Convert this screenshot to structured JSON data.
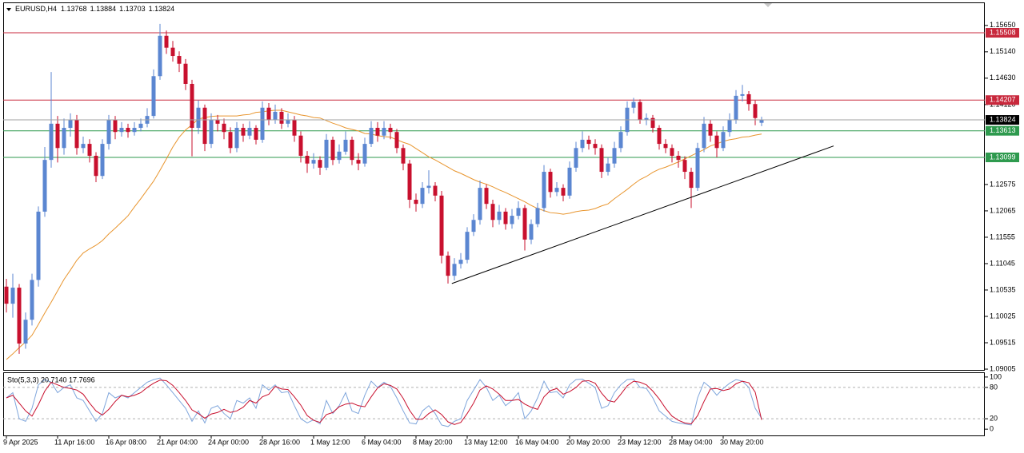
{
  "chart_data": {
    "type": "candlestick",
    "symbol": "EURUSD,H4",
    "categories": [
      "9 Apr 2025",
      null,
      null,
      null,
      null,
      null,
      null,
      null,
      "11 Apr 16:00",
      null,
      null,
      null,
      null,
      null,
      null,
      null,
      "16 Apr 08:00",
      null,
      null,
      null,
      null,
      null,
      null,
      null,
      "21 Apr 04:00",
      null,
      null,
      null,
      null,
      null,
      null,
      null,
      "24 Apr 00:00",
      null,
      null,
      null,
      null,
      null,
      null,
      null,
      "28 Apr 16:00",
      null,
      null,
      null,
      null,
      null,
      null,
      null,
      "1 May 12:00",
      null,
      null,
      null,
      null,
      null,
      null,
      null,
      "6 May 04:00",
      null,
      null,
      null,
      null,
      null,
      null,
      null,
      "8 May 20:00",
      null,
      null,
      null,
      null,
      null,
      null,
      null,
      "13 May 12:00",
      null,
      null,
      null,
      null,
      null,
      null,
      null,
      "16 May 04:00",
      null,
      null,
      null,
      null,
      null,
      null,
      null,
      "20 May 20:00",
      null,
      null,
      null,
      null,
      null,
      null,
      null,
      "23 May 12:00",
      null,
      null,
      null,
      null,
      null,
      null,
      null,
      "28 May 04:00",
      null,
      null,
      null,
      null,
      null,
      null,
      null,
      "30 May 20:00",
      null,
      null,
      null,
      null,
      null,
      null
    ],
    "open": [
      1.106,
      1.1027,
      1.1058,
      1.095,
      1.0996,
      1.1073,
      1.1205,
      1.1305,
      1.1375,
      1.1328,
      1.1367,
      1.1383,
      1.1328,
      1.1336,
      1.1313,
      1.1274,
      1.1336,
      1.1383,
      1.1359,
      1.1367,
      1.1359,
      1.1367,
      1.1375,
      1.139,
      1.1467,
      1.1545,
      1.1522,
      1.1506,
      1.1491,
      1.1452,
      1.1367,
      1.1406,
      1.1336,
      1.1383,
      1.1375,
      1.1359,
      1.1328,
      1.1367,
      1.1352,
      1.1367,
      1.1344,
      1.1406,
      1.1383,
      1.1398,
      1.1375,
      1.1383,
      1.1352,
      1.1313,
      1.1298,
      1.1305,
      1.129,
      1.1344,
      1.1305,
      1.1321,
      1.1344,
      1.1305,
      1.1298,
      1.1336,
      1.1367,
      1.1352,
      1.1367,
      1.1359,
      1.1328,
      1.1298,
      1.1228,
      1.122,
      1.1251,
      1.1255,
      1.1236,
      1.112,
      1.1081,
      1.1104,
      1.1112,
      1.1166,
      1.1189,
      1.1251,
      1.122,
      1.1189,
      1.1205,
      1.1181,
      1.1197,
      1.1212,
      1.1151,
      1.1181,
      1.1212,
      1.1282,
      1.1243,
      1.1251,
      1.1236,
      1.129,
      1.1328,
      1.1344,
      1.1336,
      1.1328,
      1.1282,
      1.1298,
      1.1328,
      1.1359,
      1.1406,
      1.1417,
      1.1383,
      1.1386,
      1.1367,
      1.1336,
      1.1328,
      1.1313,
      1.1305,
      1.1282,
      1.1251,
      1.1328,
      1.1375,
      1.1352,
      1.1328,
      1.1359,
      1.1383,
      1.1429,
      1.1432,
      1.1413,
      1.13768
    ],
    "high": [
      1.1075,
      1.1085,
      1.1065,
      1.101,
      1.1085,
      1.1215,
      1.133,
      1.1475,
      1.139,
      1.1385,
      1.1395,
      1.1392,
      1.135,
      1.1345,
      1.132,
      1.1345,
      1.1392,
      1.139,
      1.1378,
      1.1375,
      1.1378,
      1.1385,
      1.1405,
      1.148,
      1.1568,
      1.1555,
      1.1535,
      1.1515,
      1.15,
      1.146,
      1.142,
      1.1412,
      1.1395,
      1.1392,
      1.1385,
      1.1368,
      1.1378,
      1.1375,
      1.138,
      1.1372,
      1.1418,
      1.1415,
      1.1412,
      1.1405,
      1.1395,
      1.139,
      1.136,
      1.1322,
      1.1318,
      1.1312,
      1.1355,
      1.135,
      1.1335,
      1.136,
      1.135,
      1.1318,
      1.1348,
      1.138,
      1.1378,
      1.138,
      1.1375,
      1.1365,
      1.1335,
      1.1305,
      1.124,
      1.1262,
      1.1285,
      1.1262,
      1.1245,
      1.1128,
      1.1115,
      1.1125,
      1.1175,
      1.12,
      1.1265,
      1.1258,
      1.1228,
      1.1218,
      1.1212,
      1.121,
      1.1225,
      1.1218,
      1.119,
      1.1222,
      1.1295,
      1.1288,
      1.1262,
      1.1258,
      1.1302,
      1.134,
      1.136,
      1.1352,
      1.1345,
      1.1335,
      1.131,
      1.134,
      1.137,
      1.1418,
      1.1425,
      1.1422,
      1.1395,
      1.1392,
      1.1372,
      1.1345,
      1.1335,
      1.1322,
      1.1312,
      1.129,
      1.1338,
      1.1388,
      1.1382,
      1.136,
      1.137,
      1.1395,
      1.144,
      1.145,
      1.1438,
      1.142,
      1.13884
    ],
    "low": [
      1.101,
      1.1,
      1.093,
      1.094,
      1.0985,
      1.106,
      1.1195,
      1.129,
      1.13,
      1.1315,
      1.135,
      1.1315,
      1.1318,
      1.13,
      1.1262,
      1.1268,
      1.1325,
      1.1345,
      1.135,
      1.1348,
      1.1352,
      1.136,
      1.1368,
      1.1385,
      1.146,
      1.151,
      1.1495,
      1.1475,
      1.144,
      1.1312,
      1.1355,
      1.1322,
      1.1328,
      1.136,
      1.1345,
      1.1318,
      1.132,
      1.134,
      1.1345,
      1.1335,
      1.1338,
      1.1372,
      1.1375,
      1.1365,
      1.1368,
      1.134,
      1.13,
      1.128,
      1.1288,
      1.1276,
      1.1285,
      1.1295,
      1.1298,
      1.1315,
      1.1295,
      1.1285,
      1.1292,
      1.133,
      1.134,
      1.1345,
      1.1345,
      1.1318,
      1.1285,
      1.1212,
      1.1205,
      1.1212,
      1.124,
      1.1225,
      1.1105,
      1.1066,
      1.1072,
      1.1095,
      1.1105,
      1.1158,
      1.118,
      1.121,
      1.1175,
      1.118,
      1.117,
      1.1172,
      1.119,
      1.113,
      1.1142,
      1.1175,
      1.1205,
      1.1232,
      1.1235,
      1.1225,
      1.123,
      1.1282,
      1.132,
      1.1325,
      1.1315,
      1.127,
      1.1275,
      1.129,
      1.132,
      1.1352,
      1.1395,
      1.1375,
      1.1372,
      1.1358,
      1.1325,
      1.1318,
      1.13,
      1.129,
      1.1268,
      1.1212,
      1.1245,
      1.132,
      1.134,
      1.131,
      1.1322,
      1.135,
      1.1375,
      1.1418,
      1.14,
      1.1372,
      1.13703
    ],
    "close": [
      1.1027,
      1.1058,
      1.095,
      1.0996,
      1.1073,
      1.1205,
      1.1305,
      1.1375,
      1.1328,
      1.1367,
      1.1383,
      1.1328,
      1.1336,
      1.1313,
      1.1274,
      1.1336,
      1.1383,
      1.1359,
      1.1367,
      1.1359,
      1.1367,
      1.1375,
      1.139,
      1.1467,
      1.1545,
      1.1522,
      1.1506,
      1.1491,
      1.1452,
      1.1367,
      1.1406,
      1.1336,
      1.1383,
      1.1375,
      1.1359,
      1.1328,
      1.1367,
      1.1352,
      1.1367,
      1.1344,
      1.1406,
      1.1383,
      1.1398,
      1.1375,
      1.1383,
      1.1352,
      1.1313,
      1.1298,
      1.1305,
      1.129,
      1.1344,
      1.1305,
      1.1321,
      1.1344,
      1.1305,
      1.1298,
      1.1336,
      1.1367,
      1.1352,
      1.1367,
      1.1359,
      1.1328,
      1.1298,
      1.1228,
      1.122,
      1.1251,
      1.1255,
      1.1236,
      1.112,
      1.1081,
      1.1104,
      1.1112,
      1.1166,
      1.1189,
      1.1251,
      1.122,
      1.1189,
      1.1205,
      1.1181,
      1.1197,
      1.1212,
      1.1151,
      1.1181,
      1.1212,
      1.1282,
      1.1243,
      1.1251,
      1.1236,
      1.129,
      1.1328,
      1.1344,
      1.1336,
      1.1328,
      1.1282,
      1.1298,
      1.1328,
      1.1359,
      1.1406,
      1.1417,
      1.1383,
      1.1386,
      1.1367,
      1.1336,
      1.1328,
      1.1313,
      1.1305,
      1.1282,
      1.1251,
      1.1328,
      1.1375,
      1.1352,
      1.1328,
      1.1359,
      1.1383,
      1.1429,
      1.1432,
      1.1413,
      1.1386,
      1.13824
    ],
    "up_color": "#5b86d1",
    "down_color": "#c8102e",
    "ylim": [
      1.0899,
      1.1608
    ],
    "yticks": [
      {
        "value": 1.1565,
        "label": "1.15650"
      },
      {
        "value": 1.1514,
        "label": "1.15140"
      },
      {
        "value": 1.1463,
        "label": "1.14630"
      },
      {
        "value": 1.1412,
        "label": "1.14120"
      },
      1.12575,
      1.12065,
      1.11555,
      1.11045,
      1.10535,
      1.10025,
      1.09515,
      1.09005
    ],
    "moving_average": {
      "color": "#e8952e",
      "values": [
        1.0919,
        1.093,
        1.0942,
        1.0953,
        1.0966,
        1.0987,
        1.1009,
        1.103,
        1.1052,
        1.1074,
        1.1092,
        1.1111,
        1.1125,
        1.1133,
        1.114,
        1.1149,
        1.1162,
        1.1173,
        1.1185,
        1.1197,
        1.1214,
        1.123,
        1.1247,
        1.1264,
        1.1285,
        1.1307,
        1.133,
        1.1349,
        1.1363,
        1.1373,
        1.1384,
        1.1387,
        1.1389,
        1.139,
        1.139,
        1.139,
        1.139,
        1.1392,
        1.1393,
        1.1397,
        1.1398,
        1.14,
        1.1401,
        1.1401,
        1.1398,
        1.1395,
        1.1392,
        1.139,
        1.1387,
        1.1386,
        1.1381,
        1.1376,
        1.1372,
        1.1367,
        1.1364,
        1.1361,
        1.1356,
        1.1355,
        1.1352,
        1.135,
        1.1349,
        1.1344,
        1.1339,
        1.1335,
        1.1327,
        1.1319,
        1.1311,
        1.1305,
        1.1298,
        1.1291,
        1.1284,
        1.1279,
        1.1273,
        1.1267,
        1.1262,
        1.1258,
        1.1253,
        1.1247,
        1.1242,
        1.1236,
        1.123,
        1.1224,
        1.1217,
        1.1211,
        1.1207,
        1.1203,
        1.1202,
        1.12,
        1.1202,
        1.1205,
        1.1207,
        1.1208,
        1.1211,
        1.1216,
        1.122,
        1.123,
        1.1239,
        1.1248,
        1.1258,
        1.1267,
        1.1273,
        1.1281,
        1.1287,
        1.1291,
        1.1296,
        1.1301,
        1.1307,
        1.1313,
        1.1319,
        1.1325,
        1.1332,
        1.1336,
        1.1341,
        1.1344,
        1.1346,
        1.1349,
        1.135,
        1.1353,
        1.1355
      ]
    },
    "levels": [
      {
        "value": 1.15508,
        "color": "#c8283c"
      },
      {
        "value": 1.14207,
        "color": "#c8283c"
      },
      {
        "value": 1.13613,
        "color": "#2e9a4e"
      },
      {
        "value": 1.13099,
        "color": "#2e9a4e"
      }
    ],
    "current_price_color": "#000000",
    "trendline": {
      "x": [
        69.6,
        129.25
      ],
      "y": [
        1.1066,
        1.1332
      ],
      "color": "#000000"
    },
    "oscillator": {
      "type": "line",
      "label": "Sto(5,3,3) 20.7140 17.7696",
      "ylim": [
        -12,
        109
      ],
      "yticks": [
        100,
        80,
        20,
        0
      ],
      "levels": [
        80,
        20
      ],
      "series": [
        {
          "color": "#7fa6dc",
          "values": [
            60,
            70,
            20,
            15,
            40,
            85,
            95,
            90,
            70,
            80,
            85,
            60,
            55,
            35,
            15,
            30,
            70,
            60,
            65,
            60,
            70,
            80,
            90,
            95,
            98,
            85,
            70,
            55,
            40,
            15,
            35,
            12,
            40,
            45,
            30,
            20,
            55,
            50,
            60,
            40,
            85,
            75,
            85,
            70,
            72,
            45,
            20,
            12,
            18,
            10,
            55,
            30,
            45,
            70,
            35,
            30,
            65,
            92,
            80,
            90,
            82,
            60,
            35,
            12,
            10,
            35,
            45,
            30,
            8,
            5,
            15,
            20,
            55,
            75,
            95,
            80,
            55,
            65,
            45,
            55,
            70,
            20,
            35,
            60,
            92,
            70,
            72,
            60,
            85,
            95,
            96,
            88,
            80,
            40,
            45,
            70,
            85,
            95,
            96,
            80,
            78,
            60,
            35,
            25,
            15,
            12,
            10,
            8,
            60,
            90,
            80,
            65,
            78,
            88,
            95,
            92,
            80,
            40,
            20.714
          ]
        },
        {
          "color": "#c8102e",
          "values": [
            60,
            65,
            50,
            35,
            25,
            47,
            73,
            90,
            85,
            80,
            78,
            75,
            67,
            50,
            35,
            27,
            38,
            53,
            65,
            62,
            65,
            70,
            80,
            88,
            94,
            93,
            84,
            70,
            55,
            37,
            30,
            21,
            29,
            32,
            38,
            32,
            35,
            42,
            55,
            50,
            62,
            67,
            82,
            77,
            76,
            62,
            46,
            26,
            17,
            13,
            28,
            32,
            43,
            48,
            50,
            45,
            43,
            62,
            79,
            87,
            84,
            77,
            59,
            36,
            19,
            19,
            30,
            37,
            28,
            14,
            9,
            13,
            30,
            50,
            75,
            83,
            77,
            67,
            55,
            55,
            57,
            48,
            42,
            38,
            62,
            74,
            78,
            67,
            72,
            80,
            92,
            93,
            88,
            69,
            55,
            52,
            67,
            83,
            92,
            90,
            85,
            73,
            58,
            40,
            25,
            17,
            12,
            10,
            26,
            53,
            77,
            78,
            74,
            77,
            87,
            92,
            89,
            71,
            17.7696
          ]
        }
      ]
    }
  }
}
